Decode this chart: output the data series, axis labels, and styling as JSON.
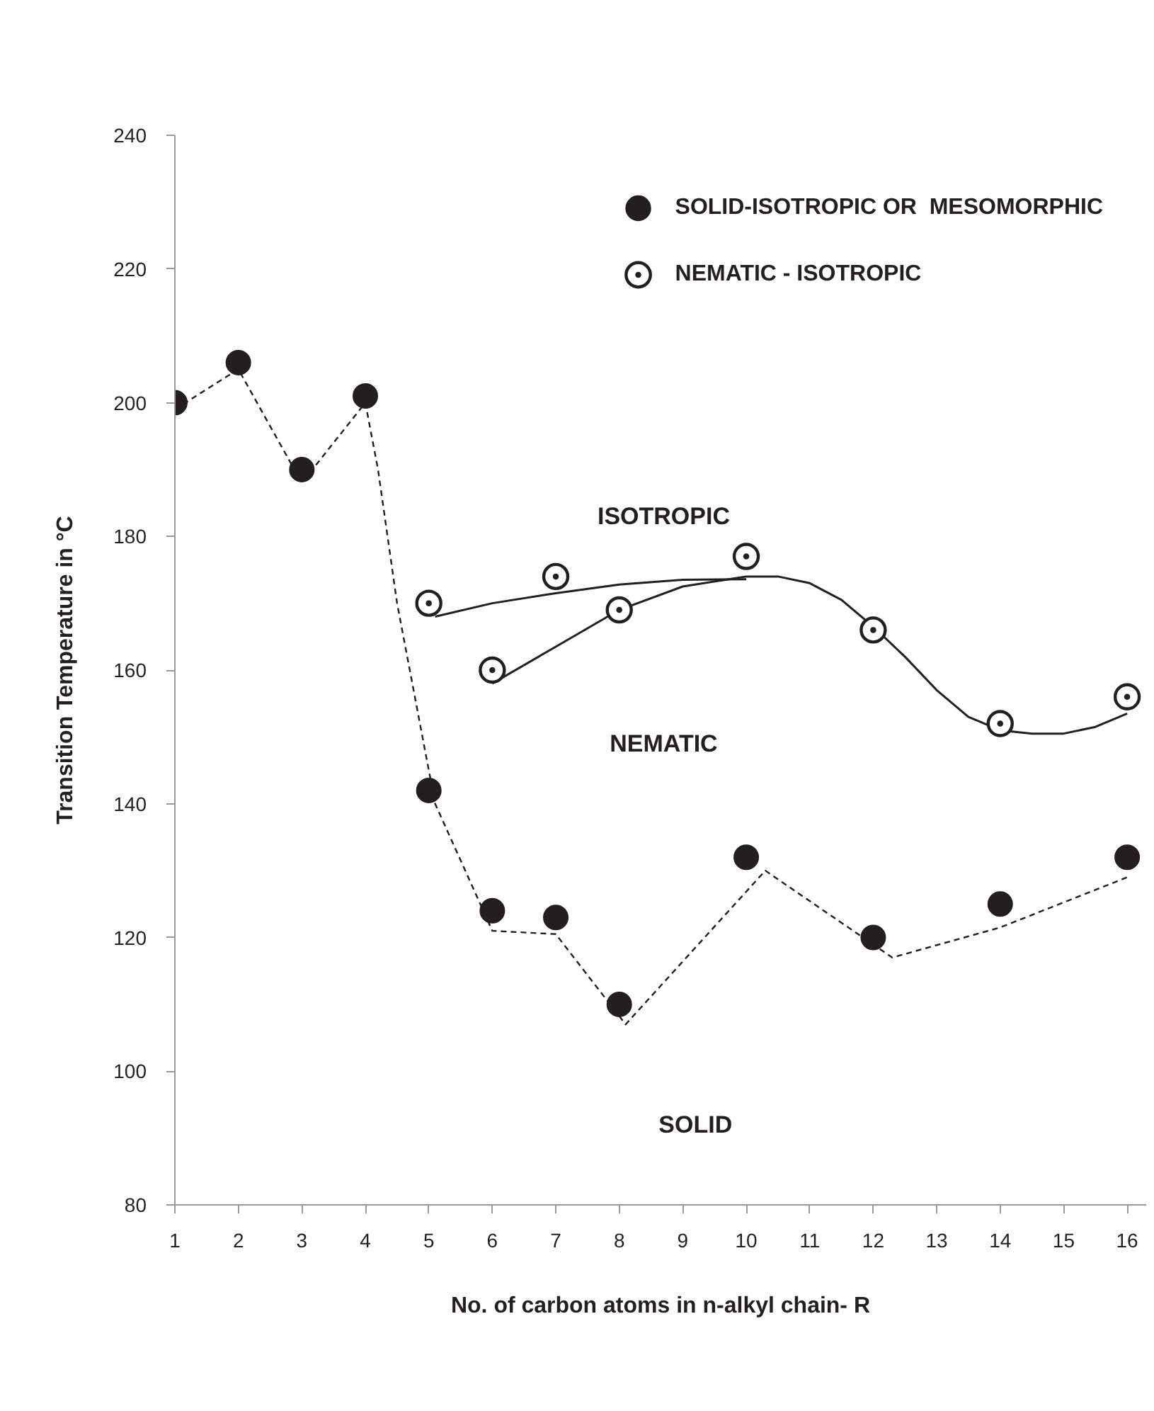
{
  "chart_data": {
    "type": "scatter",
    "xlabel": "No. of carbon atoms in n-alkyl chain- R",
    "ylabel": "Transition Temperature in °C",
    "xlim": [
      1,
      16.3
    ],
    "xticks": [
      1,
      2,
      3,
      4,
      5,
      6,
      7,
      8,
      9,
      10,
      11,
      12,
      13,
      14,
      15,
      16
    ],
    "ylim": [
      80,
      240
    ],
    "yticks": [
      80,
      100,
      120,
      140,
      160,
      180,
      200,
      220,
      240
    ],
    "grid": false,
    "legend": "top right",
    "annotations": [
      "ISOTROPIC",
      "NEMATIC",
      "SOLID"
    ],
    "series": [
      {
        "name": "SOLID-ISOTROPIC OR  MESOMORPHIC",
        "marker": "circle",
        "color": "#231f20",
        "x": [
          1,
          2,
          3,
          4,
          5,
          6,
          7,
          8,
          10,
          12,
          14,
          16
        ],
        "values": [
          200,
          206,
          190,
          201,
          142,
          124,
          123,
          110,
          132,
          120,
          125,
          132
        ]
      },
      {
        "name": "NEMATIC - ISOTROPIC",
        "marker": "circle_dot",
        "color": "#231f20",
        "x": [
          5,
          6,
          7,
          8,
          10,
          12,
          14,
          16
        ],
        "values": [
          170,
          160,
          174,
          169,
          177,
          166,
          152,
          156
        ]
      },
      {
        "type": "line",
        "line_style": "dashed",
        "color": "#231f20",
        "x": [
          1,
          2,
          3,
          4,
          4.2,
          4.5,
          4.8,
          5.1,
          6,
          7,
          8.1,
          10.3,
          12.3,
          14,
          16
        ],
        "values": [
          199,
          205,
          188,
          200,
          190,
          170,
          155,
          140,
          121,
          120.5,
          107,
          130,
          117,
          121.5,
          129
        ]
      },
      {
        "type": "line",
        "line_style": "solid",
        "color": "#231f20",
        "x": [
          5.1,
          6,
          7,
          8,
          9,
          10
        ],
        "values": [
          168,
          170,
          171.5,
          172.8,
          173.5,
          173.6
        ]
      },
      {
        "type": "line",
        "line_style": "solid",
        "color": "#231f20",
        "x": [
          6,
          7,
          8,
          9,
          10,
          10.5,
          11,
          11.5,
          12,
          12.5,
          13,
          13.5,
          14,
          14.5,
          15,
          15.5,
          16
        ],
        "values": [
          158,
          163.5,
          169,
          172.5,
          174,
          174,
          173,
          170.5,
          166.5,
          162,
          157,
          153,
          151,
          150.5,
          150.5,
          151.5,
          153.5
        ]
      }
    ]
  }
}
